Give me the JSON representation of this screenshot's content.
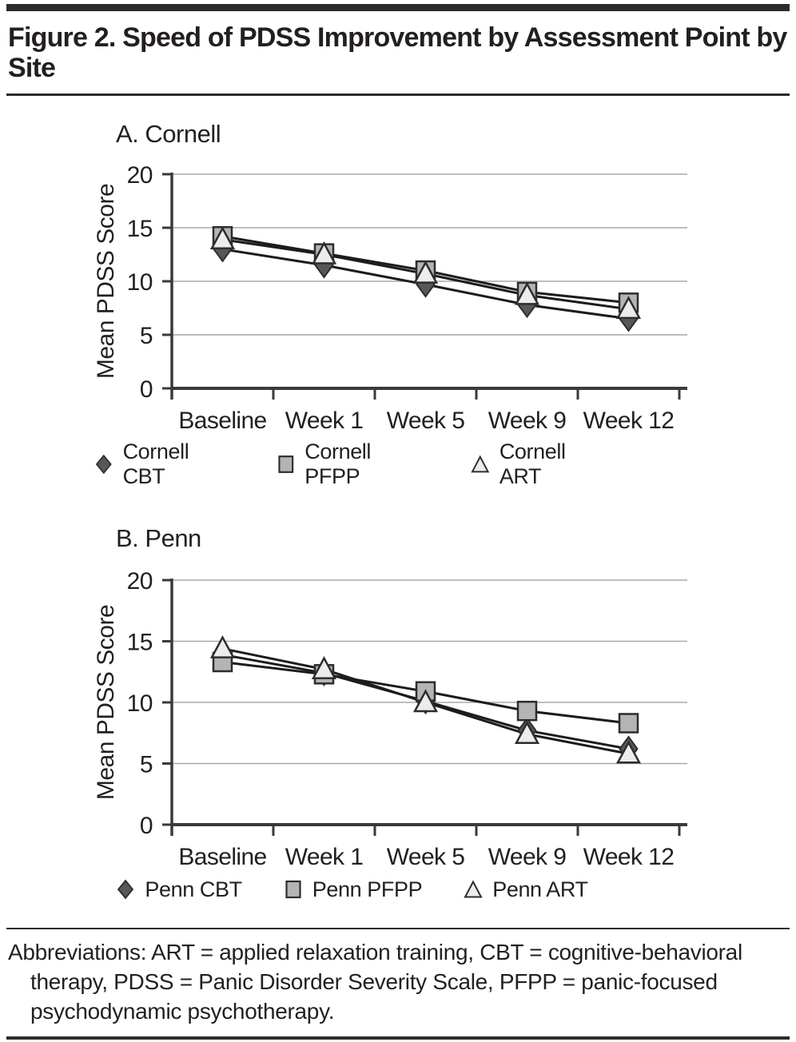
{
  "figure": {
    "title": "Figure 2. Speed of PDSS Improvement by Assessment Point by Site",
    "footnote": "Abbreviations: ART = applied relaxation training, CBT = cognitive-behavioral therapy, PDSS = Panic Disorder Severity Scale, PFPP = panic-focused psychodynamic psychotherapy."
  },
  "chart_data": [
    {
      "type": "line",
      "panel_label": "A. Cornell",
      "ylabel": "Mean PDSS Score",
      "ylim": [
        0,
        20
      ],
      "yticks": [
        0,
        5,
        10,
        15,
        20
      ],
      "grid": true,
      "legend_position": "bottom",
      "categories": [
        "Baseline",
        "Week 1",
        "Week 5",
        "Week 9",
        "Week 12"
      ],
      "series": [
        {
          "name": "Cornell CBT",
          "marker": "diamond",
          "values": [
            13.0,
            11.5,
            9.7,
            7.8,
            6.5
          ]
        },
        {
          "name": "Cornell PFPP",
          "marker": "square",
          "values": [
            14.2,
            12.6,
            11.0,
            9.0,
            8.0
          ]
        },
        {
          "name": "Cornell ART",
          "marker": "triangle",
          "values": [
            13.9,
            12.5,
            10.7,
            8.7,
            7.4
          ]
        }
      ]
    },
    {
      "type": "line",
      "panel_label": "B. Penn",
      "ylabel": "Mean PDSS Score",
      "ylim": [
        0,
        20
      ],
      "yticks": [
        0,
        5,
        10,
        15,
        20
      ],
      "grid": true,
      "legend_position": "bottom",
      "categories": [
        "Baseline",
        "Week 1",
        "Week 5",
        "Week 9",
        "Week 12"
      ],
      "series": [
        {
          "name": "Penn CBT",
          "marker": "diamond",
          "values": [
            13.9,
            12.4,
            10.1,
            7.7,
            6.2
          ]
        },
        {
          "name": "Penn PFPP",
          "marker": "square",
          "values": [
            13.3,
            12.3,
            10.9,
            9.3,
            8.3
          ]
        },
        {
          "name": "Penn ART",
          "marker": "triangle",
          "values": [
            14.4,
            12.7,
            10.0,
            7.4,
            5.8
          ]
        }
      ]
    }
  ],
  "style": {
    "marker_fills": {
      "diamond": "#575757",
      "square": "#b4b4b4",
      "triangle": "#ececec"
    },
    "marker_stroke": "#2d2d2d",
    "line_color": "#1c1c1c",
    "grid_color": "#a9a9a9",
    "axis_color": "#3a3a3a",
    "text_color": "#231f20",
    "rule_color": "#2b2b2b"
  }
}
